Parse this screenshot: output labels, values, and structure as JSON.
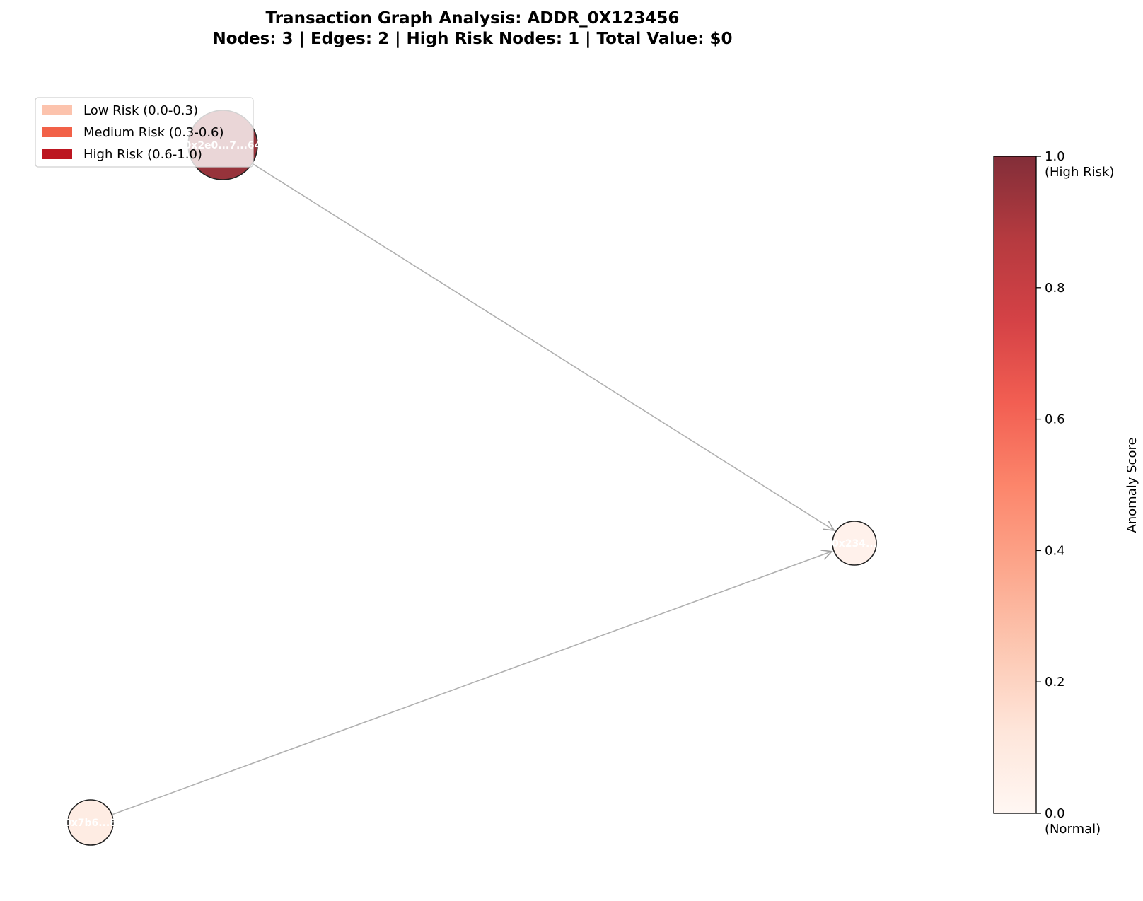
{
  "title": {
    "line1": "Transaction Graph Analysis: ADDR_0X123456",
    "line2": "Nodes: 3 | Edges: 2 | High Risk Nodes: 1 | Total Value: $0"
  },
  "legend": {
    "placement": "top-left",
    "items": [
      {
        "label": "Low Risk (0.0-0.3)",
        "color": "#fcc3ad"
      },
      {
        "label": "Medium Risk (0.3-0.6)",
        "color": "#f26148"
      },
      {
        "label": "High Risk (0.6-1.0)",
        "color": "#bc1620"
      }
    ]
  },
  "nodes": [
    {
      "id": "high",
      "label": "0x2e0...7...64",
      "anomaly_score": 0.95,
      "size": "large"
    },
    {
      "id": "target",
      "label": "0x234...",
      "anomaly_score": 0.04,
      "size": "small"
    },
    {
      "id": "source",
      "label": "0x7b6...8",
      "anomaly_score": 0.08,
      "size": "small"
    }
  ],
  "edges": [
    {
      "from": "high",
      "to": "target"
    },
    {
      "from": "source",
      "to": "target"
    }
  ],
  "colorbar": {
    "label": "Anomaly Score",
    "min": 0.0,
    "max": 1.0,
    "ticks": [
      {
        "value": 0.0,
        "label": "0.0",
        "sublabel": "(Normal)"
      },
      {
        "value": 0.2,
        "label": "0.2",
        "sublabel": ""
      },
      {
        "value": 0.4,
        "label": "0.4",
        "sublabel": ""
      },
      {
        "value": 0.6,
        "label": "0.6",
        "sublabel": ""
      },
      {
        "value": 0.8,
        "label": "0.8",
        "sublabel": ""
      },
      {
        "value": 1.0,
        "label": "1.0",
        "sublabel": "(High Risk)"
      }
    ],
    "colormap": [
      "#fff5f0",
      "#fee0d2",
      "#fcbba1",
      "#fc9272",
      "#fb6a4a",
      "#ef3b2c",
      "#cb181d",
      "#a50f15",
      "#67000d"
    ]
  }
}
